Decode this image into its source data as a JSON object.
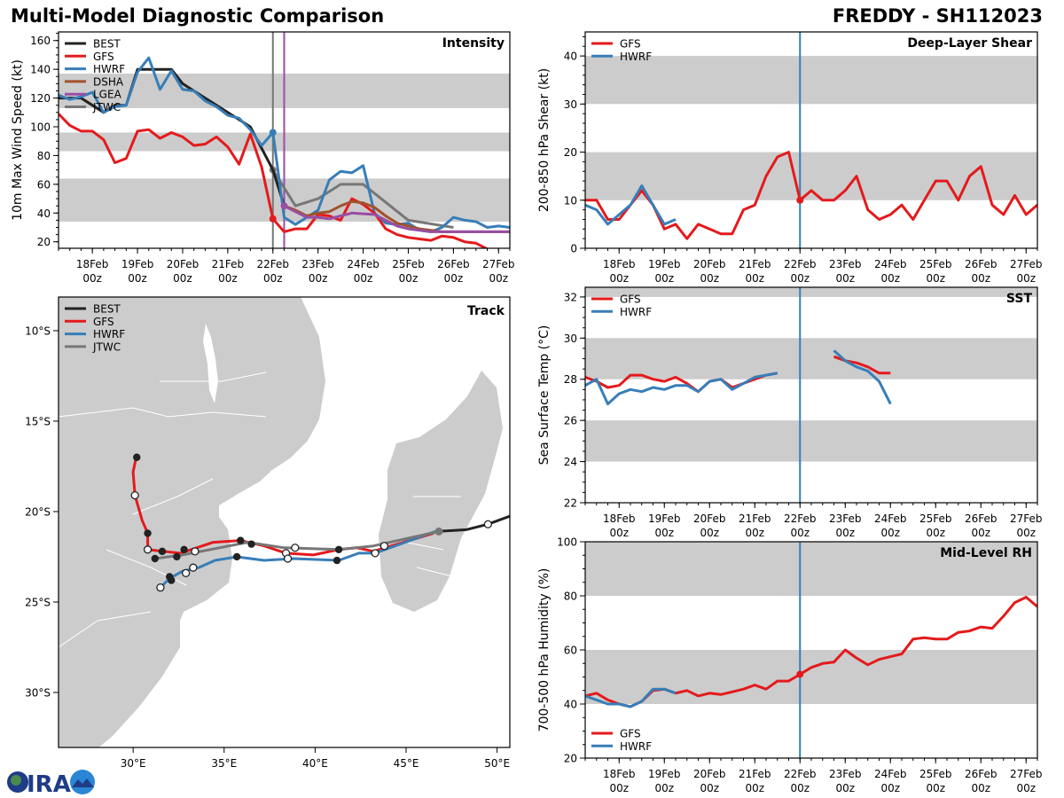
{
  "header": {
    "title": "Multi-Model Diagnostic Comparison",
    "storm": "FREDDY - SH112023"
  },
  "logo": {
    "text": "CIRA"
  },
  "colors": {
    "BEST": "#222222",
    "GFS": "#e41a1c",
    "HWRF": "#377eb8",
    "DSHA": "#a0522d",
    "LGEA": "#984ea3",
    "JTWC": "#777777",
    "band": "#cccccc",
    "land": "#cccccc"
  },
  "time_ticks": {
    "days": [
      18,
      19,
      20,
      21,
      22,
      23,
      24,
      25,
      26,
      27
    ],
    "labels": [
      "18Feb",
      "19Feb",
      "20Feb",
      "21Feb",
      "22Feb",
      "23Feb",
      "24Feb",
      "25Feb",
      "26Feb",
      "27Feb"
    ],
    "sub": "00z"
  },
  "chart_data": [
    {
      "id": "intensity",
      "type": "line",
      "title": "Intensity",
      "ylabel": "10m Max Wind Speed (kt)",
      "xlim": [
        17.25,
        27.25
      ],
      "ylim": [
        15.5,
        166
      ],
      "yticks": [
        20,
        40,
        60,
        80,
        100,
        120,
        140,
        160
      ],
      "yminor": 5,
      "bands": [
        [
          34,
          64
        ],
        [
          83,
          96
        ],
        [
          113,
          137
        ]
      ],
      "vlines": [
        {
          "x": 22.0,
          "color": "#777777"
        },
        {
          "x": 22.25,
          "color": "#984ea3"
        }
      ],
      "legend": [
        "BEST",
        "GFS",
        "HWRF",
        "DSHA",
        "LGEA",
        "JTWC"
      ],
      "legend_loc": "top-left",
      "x": [
        17.25,
        17.5,
        17.75,
        18,
        18.25,
        18.5,
        18.75,
        19,
        19.25,
        19.5,
        19.75,
        20,
        20.25,
        20.5,
        20.75,
        21,
        21.25,
        21.5,
        21.75,
        22,
        22.25,
        22.5,
        22.75,
        23,
        23.25,
        23.5,
        23.75,
        24,
        24.25,
        24.5,
        24.75,
        25,
        25.25,
        25.5,
        25.75,
        26,
        26.25,
        26.5,
        26.75,
        27,
        27.25
      ],
      "series": [
        {
          "name": "JTWC",
          "x": [
            22,
            22.5,
            23,
            23.5,
            24,
            25,
            26
          ],
          "values": [
            70,
            45,
            50,
            60,
            60,
            35,
            30
          ],
          "marker_at": [
            22
          ]
        },
        {
          "name": "BEST",
          "values": [
            120,
            120,
            120,
            115,
            110,
            115,
            115,
            140,
            140,
            140,
            140,
            130,
            125,
            120,
            115,
            110,
            105,
            100,
            85,
            70,
            45,
            null,
            null,
            null,
            null,
            null,
            null,
            null,
            null,
            null,
            null,
            null,
            null,
            null,
            null,
            null,
            null,
            null,
            null,
            null,
            null
          ]
        },
        {
          "name": "HWRF",
          "values": [
            122,
            119,
            121,
            124,
            110,
            114,
            115,
            138,
            148,
            126,
            139,
            126,
            125,
            118,
            114,
            108,
            106,
            98,
            87,
            96,
            37,
            32,
            37,
            42,
            63,
            69,
            68,
            73,
            40,
            33,
            32,
            33,
            28,
            27,
            30,
            37,
            35,
            34,
            30,
            31,
            30
          ],
          "marker_at": [
            22
          ]
        },
        {
          "name": "GFS",
          "values": [
            109,
            101,
            97,
            97,
            91,
            75,
            78,
            97,
            98,
            92,
            96,
            93,
            87,
            88,
            93,
            86,
            74,
            95,
            72,
            36,
            27,
            29,
            29,
            39,
            38,
            35,
            50,
            46,
            40,
            29,
            25,
            23,
            22,
            21,
            24,
            23,
            20,
            19,
            15,
            12,
            null
          ],
          "marker_at": [
            22
          ]
        },
        {
          "name": "DSHA",
          "values": [
            null,
            null,
            null,
            null,
            null,
            null,
            null,
            null,
            null,
            null,
            null,
            null,
            null,
            null,
            null,
            null,
            null,
            null,
            null,
            null,
            45,
            42,
            38,
            40,
            41,
            45,
            48,
            47,
            44,
            38,
            33,
            31,
            29,
            28,
            27,
            27,
            27,
            27,
            27,
            27,
            27
          ]
        },
        {
          "name": "LGEA",
          "values": [
            null,
            null,
            null,
            null,
            null,
            null,
            null,
            null,
            null,
            null,
            null,
            null,
            null,
            null,
            null,
            null,
            null,
            null,
            null,
            null,
            45,
            41,
            37,
            37,
            36,
            38,
            40,
            39.5,
            39,
            35,
            31,
            29,
            28,
            27,
            27,
            27,
            27,
            27,
            27,
            27,
            27
          ],
          "marker_at": [
            22.25
          ]
        }
      ]
    },
    {
      "id": "shear",
      "type": "line",
      "title": "Deep-Layer Shear",
      "ylabel": "200-850 hPa Shear (kt)",
      "xlim": [
        17.25,
        27.25
      ],
      "ylim": [
        0,
        45
      ],
      "yticks": [
        0,
        10,
        20,
        30,
        40
      ],
      "yminor": 2,
      "bands": [
        [
          10,
          20
        ],
        [
          30,
          40
        ]
      ],
      "vlines": [
        {
          "x": 22.0,
          "color": "#377eb8"
        }
      ],
      "legend": [
        "GFS",
        "HWRF"
      ],
      "legend_loc": "top-left",
      "x": [
        17.25,
        17.5,
        17.75,
        18,
        18.25,
        18.5,
        18.75,
        19,
        19.25,
        19.5,
        19.75,
        20,
        20.25,
        20.5,
        20.75,
        21,
        21.25,
        21.5,
        21.75,
        22,
        22.25,
        22.5,
        22.75,
        23,
        23.25,
        23.5,
        23.75,
        24,
        24.25,
        24.5,
        24.75,
        25,
        25.25,
        25.5,
        25.75,
        26,
        26.25,
        26.5,
        26.75,
        27,
        27.25
      ],
      "series": [
        {
          "name": "GFS",
          "values": [
            10,
            10,
            6,
            6,
            9,
            12,
            9,
            4,
            5,
            2,
            5,
            4,
            3,
            3,
            8,
            9,
            15,
            19,
            20,
            10,
            12,
            10,
            10,
            12,
            15,
            8,
            6,
            7,
            9,
            6,
            10,
            14,
            14,
            10,
            15,
            17,
            9,
            7,
            11,
            7,
            9
          ],
          "marker_at": [
            22
          ]
        },
        {
          "name": "HWRF",
          "values": [
            9,
            8,
            5,
            7,
            9,
            13,
            9,
            5,
            6,
            null,
            null,
            null,
            null,
            null,
            null,
            null,
            null,
            null,
            null,
            null,
            null,
            null,
            null,
            null,
            null,
            null,
            null,
            null,
            null,
            null,
            null,
            null,
            null,
            null,
            null,
            null,
            null,
            null,
            null,
            null,
            null
          ]
        }
      ]
    },
    {
      "id": "sst",
      "type": "line",
      "title": "SST",
      "ylabel": "Sea Surface Temp (°C)",
      "xlim": [
        17.25,
        27.25
      ],
      "ylim": [
        22,
        32.47
      ],
      "yticks": [
        22,
        24,
        26,
        28,
        30,
        32
      ],
      "yminor": 0.5,
      "bands": [
        [
          24,
          26
        ],
        [
          28,
          30
        ],
        [
          32,
          34
        ]
      ],
      "vlines": [
        {
          "x": 22.0,
          "color": "#377eb8"
        }
      ],
      "legend": [
        "GFS",
        "HWRF"
      ],
      "legend_loc": "top-left",
      "x": [
        17.25,
        17.5,
        17.75,
        18,
        18.25,
        18.5,
        18.75,
        19,
        19.25,
        19.5,
        19.75,
        20,
        20.25,
        20.5,
        20.75,
        21,
        21.25,
        21.5,
        21.75,
        22,
        22.25,
        22.5,
        22.75,
        23,
        23.25,
        23.5,
        23.75,
        24
      ],
      "series": [
        {
          "name": "GFS",
          "values": [
            28.1,
            27.9,
            27.6,
            27.7,
            28.2,
            28.2,
            28.0,
            27.9,
            28.1,
            27.8,
            27.4,
            27.9,
            28.0,
            27.6,
            27.8,
            28.0,
            28.2,
            28.3,
            null,
            null,
            null,
            null,
            29.1,
            28.9,
            28.8,
            28.6,
            28.3,
            28.3
          ]
        },
        {
          "name": "HWRF",
          "values": [
            27.7,
            28.0,
            26.8,
            27.3,
            27.5,
            27.4,
            27.6,
            27.5,
            27.7,
            27.7,
            27.4,
            27.9,
            28.0,
            27.5,
            27.8,
            28.1,
            28.2,
            28.3,
            null,
            null,
            null,
            null,
            29.4,
            28.9,
            28.6,
            28.4,
            27.9,
            26.8
          ]
        }
      ]
    },
    {
      "id": "rh",
      "type": "line",
      "title": "Mid-Level RH",
      "ylabel": "700-500 hPa Humidity (%)",
      "xlim": [
        17.25,
        27.25
      ],
      "ylim": [
        20,
        100
      ],
      "yticks": [
        20,
        40,
        60,
        80,
        100
      ],
      "yminor": 5,
      "bands": [
        [
          40,
          60
        ],
        [
          80,
          100
        ]
      ],
      "vlines": [
        {
          "x": 22.0,
          "color": "#377eb8"
        }
      ],
      "legend": [
        "GFS",
        "HWRF"
      ],
      "legend_loc": "bottom-left",
      "x": [
        17.25,
        17.5,
        17.75,
        18,
        18.25,
        18.5,
        18.75,
        19,
        19.25,
        19.5,
        19.75,
        20,
        20.25,
        20.5,
        20.75,
        21,
        21.25,
        21.5,
        21.75,
        22,
        22.25,
        22.5,
        22.75,
        23,
        23.25,
        23.5,
        23.75,
        24,
        24.25,
        24.5,
        24.75,
        25,
        25.25,
        25.5,
        25.75,
        26,
        26.25,
        26.5,
        26.75,
        27,
        27.25
      ],
      "series": [
        {
          "name": "GFS",
          "values": [
            43,
            44,
            41.5,
            40,
            39,
            41,
            45,
            45.5,
            44,
            45,
            43,
            44,
            43.5,
            44.5,
            45.5,
            47,
            45.5,
            48.5,
            48.5,
            51,
            53.5,
            55,
            55.5,
            60,
            57,
            54.5,
            56.5,
            57.5,
            58.5,
            64,
            64.5,
            64,
            64,
            66.5,
            67,
            68.5,
            68,
            72.5,
            77.5,
            79.5,
            76
          ],
          "marker_at": [
            22
          ]
        },
        {
          "name": "HWRF",
          "values": [
            43,
            41.5,
            40,
            40,
            39,
            41,
            45.5,
            45.5,
            44,
            null,
            null,
            null,
            null,
            null,
            null,
            null,
            null,
            null,
            null,
            null,
            null,
            null,
            null,
            null,
            null,
            null,
            null,
            null,
            null,
            null,
            null,
            null,
            null,
            null,
            null,
            null,
            null,
            null,
            null,
            null,
            null
          ]
        }
      ]
    },
    {
      "id": "track",
      "type": "map",
      "title": "Track",
      "lon_range": [
        25.9,
        50.7
      ],
      "lat_range": [
        -33.04,
        -8.14
      ],
      "lon_ticks": [
        30,
        35,
        40,
        45,
        50
      ],
      "lon_labels": [
        "30°E",
        "35°E",
        "40°E",
        "45°E",
        "50°E"
      ],
      "lat_ticks": [
        -10,
        -15,
        -20,
        -25,
        -30
      ],
      "lat_labels": [
        "10°S",
        "15°S",
        "20°S",
        "25°S",
        "30°S"
      ],
      "legend": [
        "BEST",
        "GFS",
        "HWRF",
        "JTWC"
      ],
      "legend_loc": "top-left",
      "tracks": [
        {
          "name": "BEST",
          "points": [
            [
              50.7,
              -20.25
            ],
            [
              49.5,
              -20.7
            ],
            [
              48.3,
              -21.0
            ],
            [
              46.7,
              -21.1
            ]
          ]
        },
        {
          "name": "GFS",
          "points": [
            [
              30.15,
              -17.1
            ],
            [
              30.0,
              -17.8
            ],
            [
              30.1,
              -19.1
            ],
            [
              30.5,
              -20.5
            ],
            [
              30.8,
              -21.2
            ],
            [
              30.8,
              -22.1
            ],
            [
              31.6,
              -22.2
            ],
            [
              32.6,
              -22.3
            ],
            [
              34.4,
              -21.7
            ],
            [
              35.9,
              -21.6
            ],
            [
              37.2,
              -21.9
            ],
            [
              38.4,
              -22.3
            ],
            [
              39.9,
              -22.4
            ],
            [
              41.3,
              -22.1
            ],
            [
              42.3,
              -22.0
            ],
            [
              43.2,
              -22.2
            ],
            [
              46.5,
              -21.2
            ]
          ]
        },
        {
          "name": "HWRF",
          "points": [
            [
              31.5,
              -24.2
            ],
            [
              32.0,
              -23.7
            ],
            [
              32.7,
              -23.3
            ],
            [
              33.6,
              -23.1
            ],
            [
              34.5,
              -22.7
            ],
            [
              35.7,
              -22.5
            ],
            [
              37.2,
              -22.7
            ],
            [
              38.8,
              -22.6
            ],
            [
              41.3,
              -22.7
            ],
            [
              42.4,
              -22.3
            ],
            [
              43.3,
              -22.3
            ],
            [
              46.6,
              -21.1
            ]
          ]
        },
        {
          "name": "JTWC",
          "points": [
            [
              31.2,
              -22.6
            ],
            [
              32.7,
              -22.4
            ],
            [
              36.3,
              -21.7
            ],
            [
              38.3,
              -22.0
            ],
            [
              41.3,
              -22.1
            ],
            [
              43.2,
              -21.9
            ],
            [
              46.8,
              -21.1
            ]
          ]
        }
      ],
      "filled_markers": [
        [
          30.2,
          -17.0
        ],
        [
          30.8,
          -21.2
        ],
        [
          31.6,
          -22.2
        ],
        [
          31.2,
          -22.6
        ],
        [
          32.4,
          -22.5
        ],
        [
          32.8,
          -22.1
        ],
        [
          32.0,
          -23.6
        ],
        [
          32.1,
          -23.8
        ],
        [
          35.9,
          -21.6
        ],
        [
          36.5,
          -21.8
        ],
        [
          35.7,
          -22.5
        ],
        [
          41.3,
          -22.1
        ],
        [
          41.2,
          -22.7
        ]
      ],
      "open_markers": [
        [
          30.1,
          -19.1
        ],
        [
          30.8,
          -22.1
        ],
        [
          33.4,
          -22.2
        ],
        [
          33.3,
          -23.1
        ],
        [
          32.9,
          -23.4
        ],
        [
          31.5,
          -24.2
        ],
        [
          38.4,
          -22.3
        ],
        [
          38.9,
          -22.0
        ],
        [
          38.5,
          -22.6
        ],
        [
          43.8,
          -21.9
        ],
        [
          43.3,
          -22.3
        ],
        [
          49.5,
          -20.7
        ]
      ],
      "current_position": [
        46.8,
        -21.1
      ]
    }
  ]
}
